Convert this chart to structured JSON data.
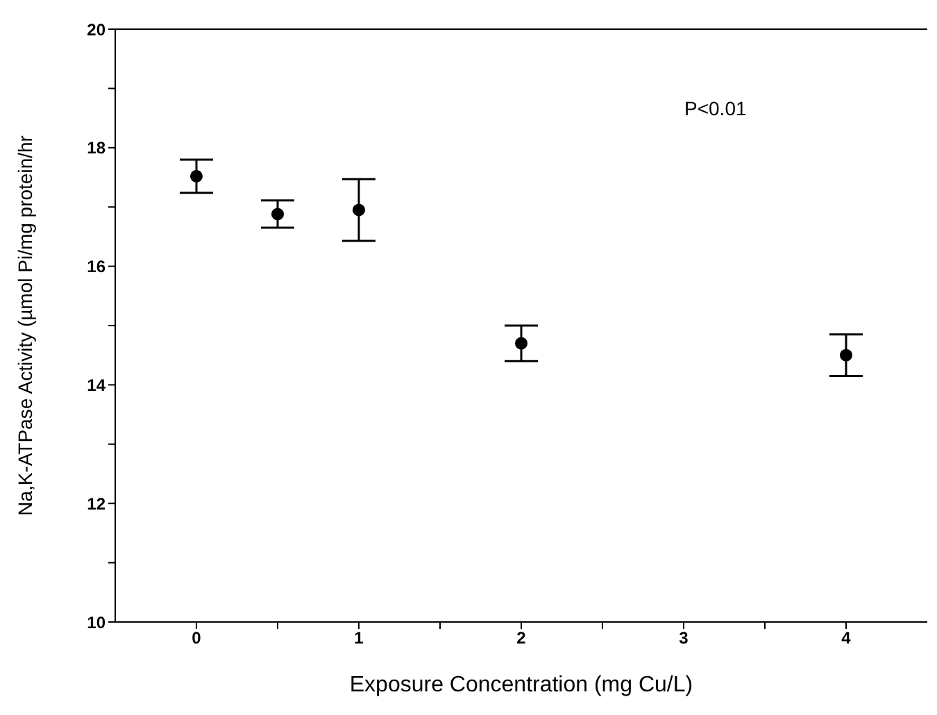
{
  "chart_data": {
    "type": "scatter",
    "xlabel": "Exposure  Concentration  (mg  Cu/L)",
    "ylabel": "Na,K-ATPase Activity (µmol Pi/mg protein/hr",
    "x": [
      0,
      0.5,
      1,
      2,
      4
    ],
    "series": [
      {
        "color": "#000000",
        "values": [
          17.52,
          16.88,
          16.95,
          14.7,
          14.5
        ],
        "errors": [
          0.28,
          0.23,
          0.52,
          0.3,
          0.35
        ]
      }
    ],
    "xlim": [
      -0.5,
      4.5
    ],
    "xticks": [
      0,
      {
        "value": 0.5,
        "label": null
      },
      1,
      {
        "value": 1.5,
        "label": null
      },
      2,
      {
        "value": 2.5,
        "label": null
      },
      3,
      {
        "value": 3.5,
        "label": null
      },
      4
    ],
    "ylim": [
      10,
      20
    ],
    "yticks": [
      10,
      {
        "value": 11,
        "label": null
      },
      12,
      {
        "value": 13,
        "label": null
      },
      14,
      {
        "value": 15,
        "label": null
      },
      16,
      {
        "value": 17,
        "label": null
      },
      18,
      {
        "value": 19,
        "label": null
      },
      20
    ],
    "annotations": [
      "P<0.01"
    ],
    "grid": false,
    "legend": false,
    "marker": "circle"
  }
}
